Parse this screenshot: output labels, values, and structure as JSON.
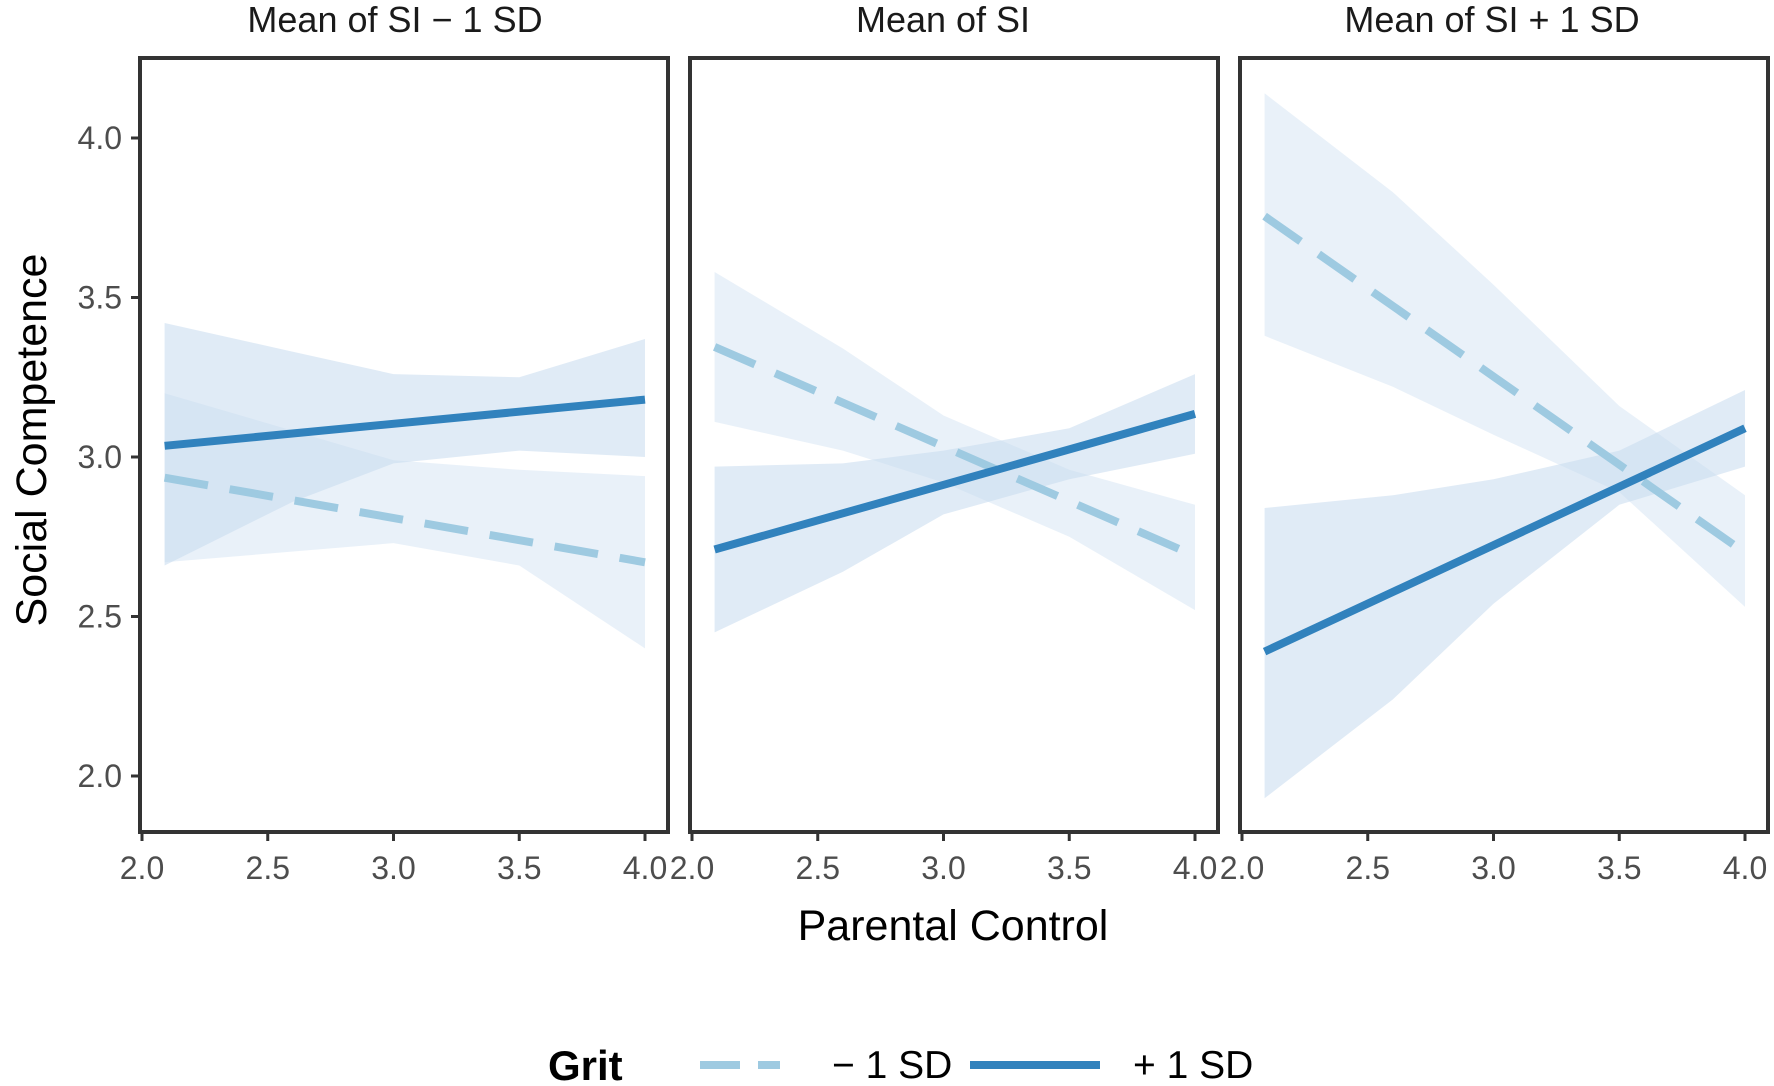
{
  "chart_data": {
    "type": "line",
    "xlabel": "Parental Control",
    "ylabel": "Social Competence",
    "xlim": [
      2.0,
      4.0
    ],
    "ylim": [
      1.8,
      4.25
    ],
    "x_ticks": [
      "2.0",
      "2.5",
      "3.0",
      "3.5",
      "4.0"
    ],
    "y_ticks": [
      "2.0",
      "2.5",
      "3.0",
      "3.5",
      "4.0"
    ],
    "x_tick_values": [
      2.0,
      2.5,
      3.0,
      3.5,
      4.0
    ],
    "y_tick_values": [
      2.0,
      2.5,
      3.0,
      3.5,
      4.0
    ],
    "legend": {
      "title": "Grit",
      "position": "bottom",
      "entries": [
        {
          "name": "− 1 SD",
          "style": "dashed",
          "color": "#9ecae1"
        },
        {
          "name": "+ 1 SD",
          "style": "solid",
          "color": "#3182bd"
        }
      ]
    },
    "ribbon_color": "#c6dbef",
    "panels": [
      {
        "title": "Mean of SI − 1 SD",
        "series": [
          {
            "name": "− 1 SD",
            "x": [
              2.09,
              4.0
            ],
            "y": [
              2.935,
              2.67
            ],
            "ci_upper": [
              [
                2.09,
                3.2
              ],
              [
                3.0,
                2.99
              ],
              [
                3.5,
                2.96
              ],
              [
                4.0,
                2.94
              ]
            ],
            "ci_lower": [
              [
                2.09,
                2.67
              ],
              [
                3.0,
                2.73
              ],
              [
                3.5,
                2.66
              ],
              [
                4.0,
                2.4
              ]
            ]
          },
          {
            "name": "+ 1 SD",
            "x": [
              2.09,
              4.0
            ],
            "y": [
              3.035,
              3.18
            ],
            "ci_upper": [
              [
                2.09,
                3.42
              ],
              [
                2.6,
                3.33
              ],
              [
                3.0,
                3.26
              ],
              [
                3.5,
                3.25
              ],
              [
                4.0,
                3.37
              ]
            ],
            "ci_lower": [
              [
                2.09,
                2.66
              ],
              [
                2.6,
                2.86
              ],
              [
                3.0,
                2.98
              ],
              [
                3.5,
                3.02
              ],
              [
                4.0,
                3.0
              ]
            ]
          }
        ]
      },
      {
        "title": "Mean of SI",
        "series": [
          {
            "name": "− 1 SD",
            "x": [
              2.09,
              4.0
            ],
            "y": [
              3.345,
              2.69
            ],
            "ci_upper": [
              [
                2.09,
                3.58
              ],
              [
                2.6,
                3.34
              ],
              [
                3.0,
                3.13
              ],
              [
                3.5,
                2.96
              ],
              [
                4.0,
                2.85
              ]
            ],
            "ci_lower": [
              [
                2.09,
                3.11
              ],
              [
                2.6,
                3.02
              ],
              [
                3.0,
                2.92
              ],
              [
                3.5,
                2.75
              ],
              [
                4.0,
                2.52
              ]
            ]
          },
          {
            "name": "+ 1 SD",
            "x": [
              2.09,
              4.0
            ],
            "y": [
              2.71,
              3.135
            ],
            "ci_upper": [
              [
                2.09,
                2.97
              ],
              [
                2.6,
                2.98
              ],
              [
                3.0,
                3.02
              ],
              [
                3.5,
                3.09
              ],
              [
                4.0,
                3.26
              ]
            ],
            "ci_lower": [
              [
                2.09,
                2.45
              ],
              [
                2.6,
                2.64
              ],
              [
                3.0,
                2.82
              ],
              [
                3.5,
                2.93
              ],
              [
                4.0,
                3.01
              ]
            ]
          }
        ]
      },
      {
        "title": "Mean of SI + 1 SD",
        "series": [
          {
            "name": "− 1 SD",
            "x": [
              2.09,
              4.0
            ],
            "y": [
              3.755,
              2.7
            ],
            "ci_upper": [
              [
                2.09,
                4.14
              ],
              [
                2.6,
                3.83
              ],
              [
                3.0,
                3.54
              ],
              [
                3.5,
                3.16
              ],
              [
                4.0,
                2.88
              ]
            ],
            "ci_lower": [
              [
                2.09,
                3.38
              ],
              [
                2.6,
                3.22
              ],
              [
                3.0,
                3.07
              ],
              [
                3.5,
                2.89
              ],
              [
                4.0,
                2.53
              ]
            ]
          },
          {
            "name": "+ 1 SD",
            "x": [
              2.09,
              4.0
            ],
            "y": [
              2.39,
              3.09
            ],
            "ci_upper": [
              [
                2.09,
                2.84
              ],
              [
                2.6,
                2.88
              ],
              [
                3.0,
                2.93
              ],
              [
                3.5,
                3.02
              ],
              [
                4.0,
                3.21
              ]
            ],
            "ci_lower": [
              [
                2.09,
                1.93
              ],
              [
                2.6,
                2.24
              ],
              [
                3.0,
                2.54
              ],
              [
                3.5,
                2.85
              ],
              [
                4.0,
                2.97
              ]
            ]
          }
        ]
      }
    ]
  }
}
